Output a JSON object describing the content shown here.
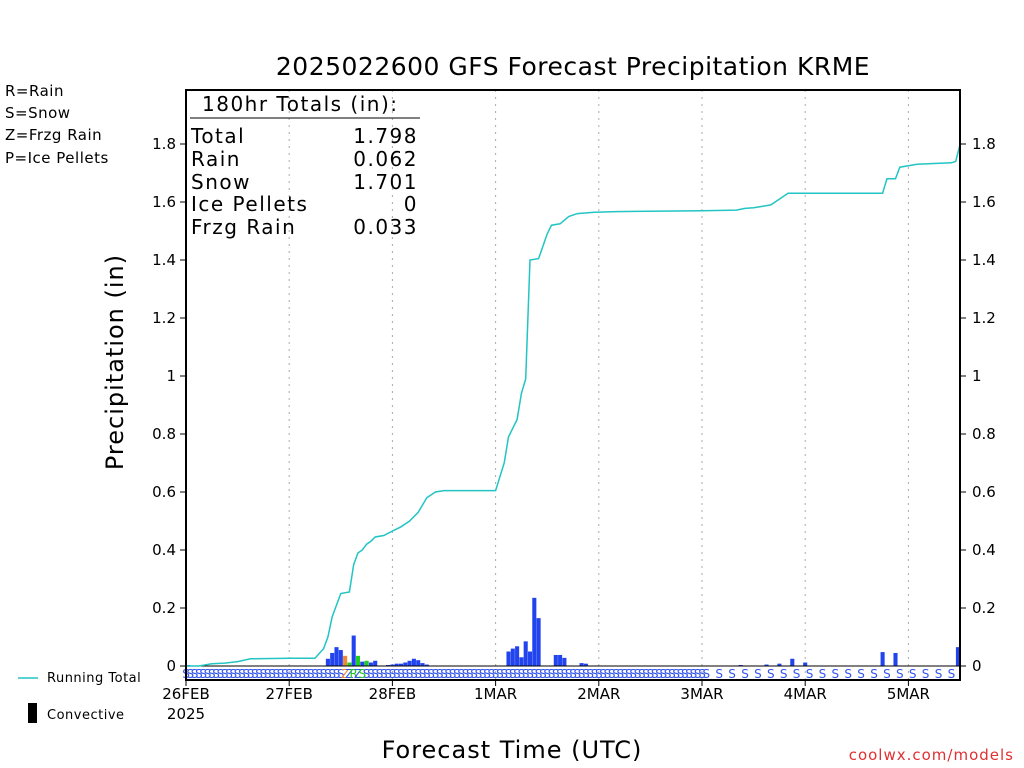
{
  "chart_data": {
    "type": "bar",
    "title": "2025022600 GFS Forecast Precipitation KRME",
    "xlabel": "Forecast Time (UTC)",
    "ylabel": "Precipitation (in)",
    "ylim": [
      -0.02,
      2.0
    ],
    "yticks": [
      0,
      0.2,
      0.4,
      0.6,
      0.8,
      1,
      1.2,
      1.4,
      1.6,
      1.8
    ],
    "ytick_labels": [
      "0",
      "0.2",
      "0.4",
      "0.6",
      "0.8",
      "1",
      "1.2",
      "1.4",
      "1.6",
      "1.8"
    ],
    "xlim_hours": [
      0,
      180
    ],
    "xticks": [
      {
        "hour": 0,
        "label": "26FEB",
        "sublabel": "2025"
      },
      {
        "hour": 24,
        "label": "27FEB"
      },
      {
        "hour": 48,
        "label": "28FEB"
      },
      {
        "hour": 72,
        "label": "1MAR"
      },
      {
        "hour": 96,
        "label": "2MAR"
      },
      {
        "hour": 120,
        "label": "3MAR"
      },
      {
        "hour": 144,
        "label": "4MAR"
      },
      {
        "hour": 168,
        "label": "5MAR"
      }
    ],
    "grid": "vertical dotted at day boundaries",
    "totals": {
      "header": "180hr Totals (in):",
      "rows": [
        {
          "label": "Total",
          "value": "1.798"
        },
        {
          "label": "Rain",
          "value": "0.062"
        },
        {
          "label": "Snow",
          "value": "1.701"
        },
        {
          "label": "Ice Pellets",
          "value": "0"
        },
        {
          "label": "Frzg Rain",
          "value": "0.033"
        }
      ]
    },
    "ptype_legend": [
      {
        "text": "R=Rain",
        "color": "#22cc22"
      },
      {
        "text": "S=Snow",
        "color": "#3355ee"
      },
      {
        "text": "Z=Frzg Rain",
        "color": "#ee8833"
      },
      {
        "text": "P=Ice Pellets",
        "color": "#ee2299"
      }
    ],
    "bottom_legend": {
      "running_total": "Running Total",
      "convective": "Convective"
    },
    "credit": "coolwx.com/models",
    "colors": {
      "running_total": "#22c4c4",
      "snow": "#2244ee",
      "rain": "#22cc22",
      "frzg_rain": "#ee8833",
      "grid": "#aaaaaa"
    },
    "bars": [
      {
        "x": 0,
        "y": 0.003,
        "type": "snow"
      },
      {
        "x": 33,
        "y": 0.025,
        "type": "snow"
      },
      {
        "x": 34,
        "y": 0.045,
        "type": "snow"
      },
      {
        "x": 35,
        "y": 0.065,
        "type": "snow"
      },
      {
        "x": 36,
        "y": 0.055,
        "type": "snow"
      },
      {
        "x": 37,
        "y": 0.035,
        "type": "frzg_rain"
      },
      {
        "x": 38,
        "y": 0.012,
        "type": "rain"
      },
      {
        "x": 39,
        "y": 0.105,
        "type": "snow"
      },
      {
        "x": 40,
        "y": 0.035,
        "type": "rain"
      },
      {
        "x": 41,
        "y": 0.015,
        "type": "snow"
      },
      {
        "x": 42,
        "y": 0.018,
        "type": "rain"
      },
      {
        "x": 43,
        "y": 0.012,
        "type": "snow"
      },
      {
        "x": 44,
        "y": 0.018,
        "type": "snow"
      },
      {
        "x": 47,
        "y": 0.003,
        "type": "snow"
      },
      {
        "x": 48,
        "y": 0.005,
        "type": "snow"
      },
      {
        "x": 49,
        "y": 0.008,
        "type": "snow"
      },
      {
        "x": 50,
        "y": 0.008,
        "type": "snow"
      },
      {
        "x": 51,
        "y": 0.012,
        "type": "snow"
      },
      {
        "x": 52,
        "y": 0.018,
        "type": "snow"
      },
      {
        "x": 53,
        "y": 0.025,
        "type": "snow"
      },
      {
        "x": 54,
        "y": 0.02,
        "type": "snow"
      },
      {
        "x": 55,
        "y": 0.01,
        "type": "snow"
      },
      {
        "x": 56,
        "y": 0.005,
        "type": "snow"
      },
      {
        "x": 75,
        "y": 0.05,
        "type": "snow"
      },
      {
        "x": 76,
        "y": 0.06,
        "type": "snow"
      },
      {
        "x": 77,
        "y": 0.068,
        "type": "snow"
      },
      {
        "x": 78,
        "y": 0.03,
        "type": "snow"
      },
      {
        "x": 79,
        "y": 0.085,
        "type": "snow"
      },
      {
        "x": 80,
        "y": 0.05,
        "type": "snow"
      },
      {
        "x": 81,
        "y": 0.235,
        "type": "snow"
      },
      {
        "x": 82,
        "y": 0.165,
        "type": "snow"
      },
      {
        "x": 86,
        "y": 0.038,
        "type": "snow"
      },
      {
        "x": 87,
        "y": 0.038,
        "type": "snow"
      },
      {
        "x": 88,
        "y": 0.028,
        "type": "snow"
      },
      {
        "x": 92,
        "y": 0.01,
        "type": "snow"
      },
      {
        "x": 93,
        "y": 0.008,
        "type": "snow"
      },
      {
        "x": 129,
        "y": 0.002,
        "type": "snow"
      },
      {
        "x": 135,
        "y": 0.005,
        "type": "snow"
      },
      {
        "x": 138,
        "y": 0.008,
        "type": "snow"
      },
      {
        "x": 141,
        "y": 0.025,
        "type": "snow"
      },
      {
        "x": 144,
        "y": 0.012,
        "type": "snow"
      },
      {
        "x": 162,
        "y": 0.048,
        "type": "snow"
      },
      {
        "x": 165,
        "y": 0.045,
        "type": "snow"
      },
      {
        "x": 180,
        "y": 0.065,
        "type": "snow"
      }
    ],
    "running_total": [
      [
        0,
        0.0
      ],
      [
        3,
        0.0
      ],
      [
        6,
        0.008
      ],
      [
        9,
        0.01
      ],
      [
        12,
        0.015
      ],
      [
        15,
        0.025
      ],
      [
        24,
        0.027
      ],
      [
        30,
        0.027
      ],
      [
        32,
        0.06
      ],
      [
        33,
        0.1
      ],
      [
        34,
        0.17
      ],
      [
        35,
        0.21
      ],
      [
        36,
        0.25
      ],
      [
        38,
        0.255
      ],
      [
        39,
        0.35
      ],
      [
        40,
        0.39
      ],
      [
        41,
        0.4
      ],
      [
        42,
        0.42
      ],
      [
        43,
        0.43
      ],
      [
        44,
        0.445
      ],
      [
        46,
        0.45
      ],
      [
        48,
        0.465
      ],
      [
        50,
        0.48
      ],
      [
        52,
        0.5
      ],
      [
        54,
        0.53
      ],
      [
        56,
        0.58
      ],
      [
        58,
        0.6
      ],
      [
        60,
        0.605
      ],
      [
        72,
        0.605
      ],
      [
        74,
        0.7
      ],
      [
        75,
        0.79
      ],
      [
        77,
        0.85
      ],
      [
        78,
        0.94
      ],
      [
        79,
        0.99
      ],
      [
        80,
        1.4
      ],
      [
        82,
        1.405
      ],
      [
        84,
        1.49
      ],
      [
        85,
        1.52
      ],
      [
        87,
        1.525
      ],
      [
        89,
        1.55
      ],
      [
        91,
        1.56
      ],
      [
        95,
        1.565
      ],
      [
        100,
        1.567
      ],
      [
        120,
        1.57
      ],
      [
        128,
        1.572
      ],
      [
        130,
        1.578
      ],
      [
        132,
        1.58
      ],
      [
        134,
        1.585
      ],
      [
        136,
        1.59
      ],
      [
        138,
        1.61
      ],
      [
        140,
        1.63
      ],
      [
        162,
        1.63
      ],
      [
        163,
        1.68
      ],
      [
        165,
        1.68
      ],
      [
        166,
        1.72
      ],
      [
        170,
        1.73
      ],
      [
        178,
        1.735
      ],
      [
        179,
        1.74
      ],
      [
        180,
        1.798
      ]
    ],
    "ptype_strip": {
      "segments": [
        {
          "from": 0,
          "to": 36,
          "code": "S",
          "color": "#3355ee"
        },
        {
          "from": 37,
          "to": 40,
          "code": "ZRS",
          "color": "#22cc22"
        },
        {
          "from": 41,
          "to": 120,
          "code": "S",
          "color": "#3355ee"
        },
        {
          "from": 121,
          "to": 180,
          "code": "S",
          "color": "#3355ee",
          "spaced": true
        }
      ],
      "special": [
        {
          "hour": 37,
          "code": "Z",
          "color": "#ee8833"
        },
        {
          "hour": 39,
          "code": "R",
          "color": "#22cc22"
        },
        {
          "hour": 41,
          "code": "S",
          "color": "#22cc22"
        },
        {
          "hour": 174,
          "code": "Z",
          "color": "#ee8833"
        }
      ]
    }
  }
}
